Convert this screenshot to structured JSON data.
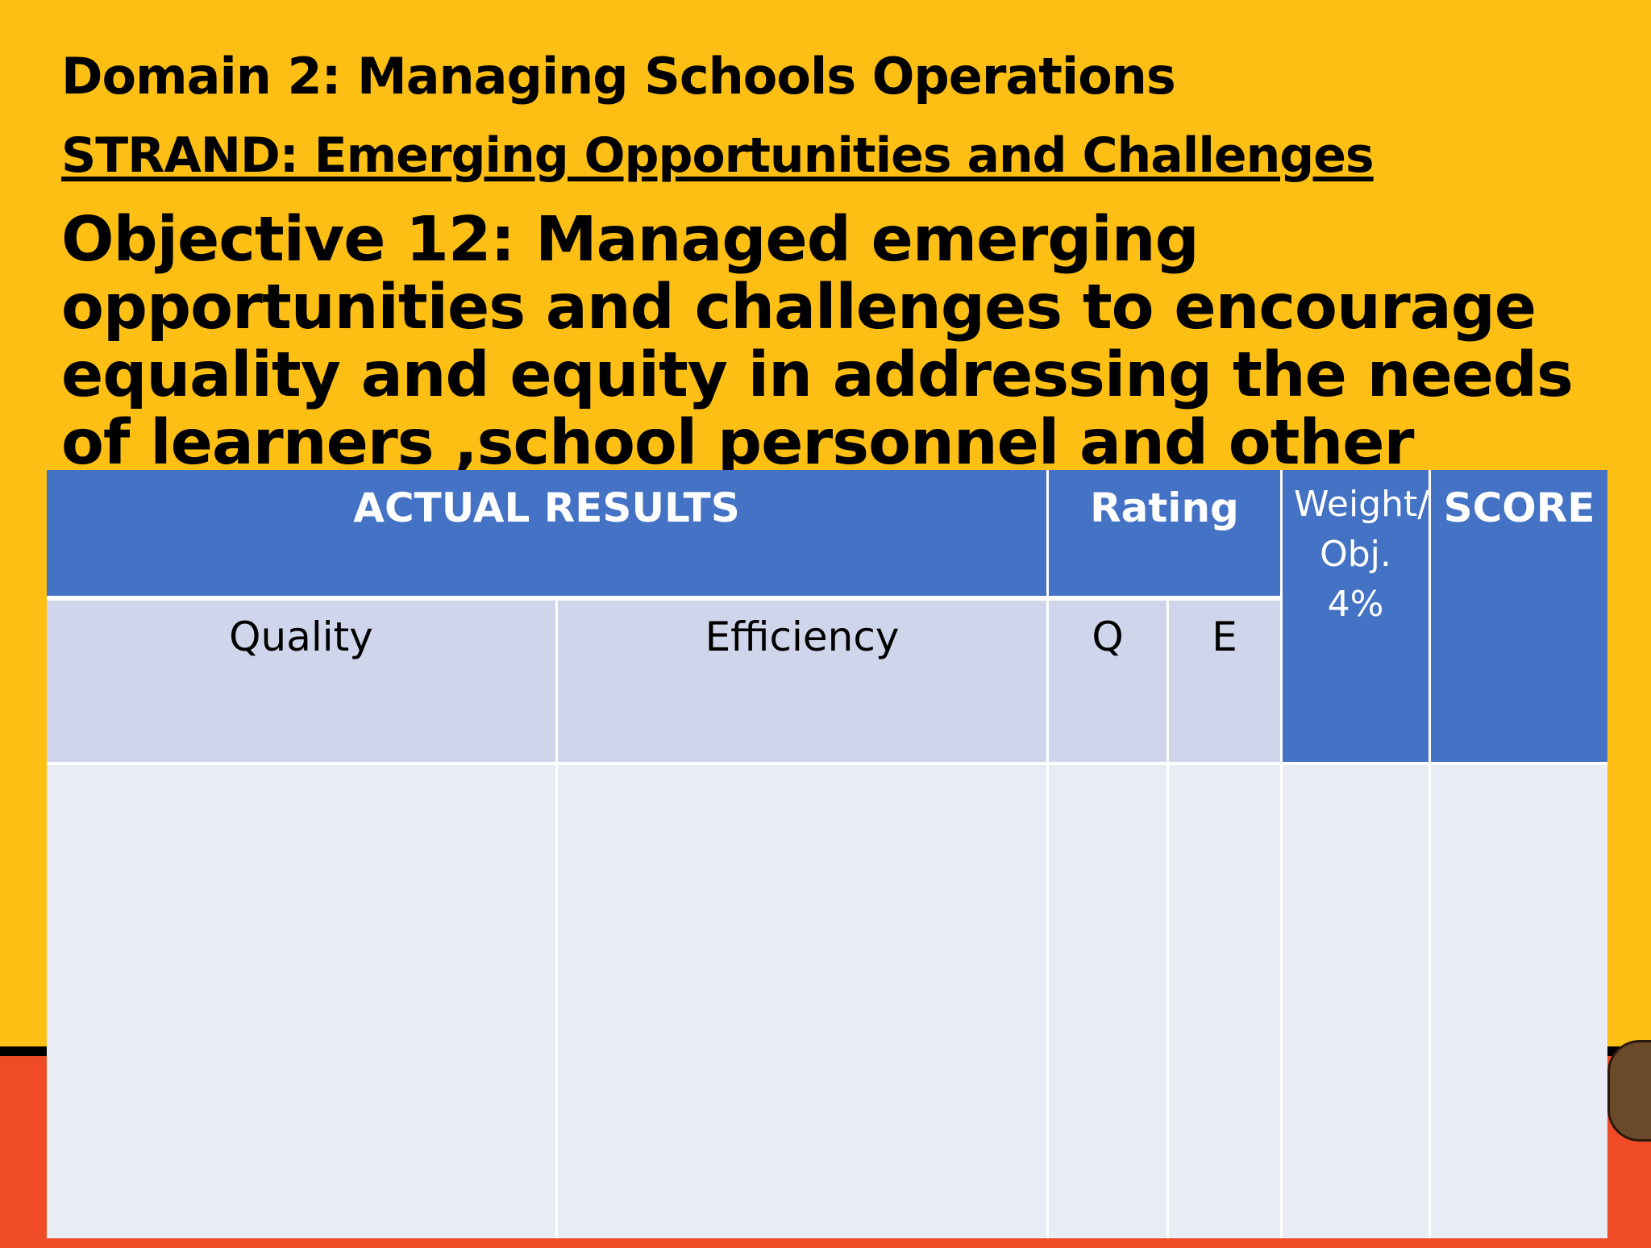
{
  "slide": {
    "domain_title": "Domain 2: Managing Schools Operations",
    "strand_title": "STRAND: Emerging Opportunities and Challenges",
    "objective": "Objective 12: Managed emerging opportunities and challenges to encourage equality and equity in addressing the needs of learners ,school personnel and other stakeholders."
  },
  "table": {
    "header": {
      "actual_results": "ACTUAL RESULTS",
      "rating": "Rating",
      "weight": "Weight/ Obj. 4%",
      "score": "SCORE"
    },
    "subheader": {
      "quality": "Quality",
      "efficiency": "Efficiency",
      "q": "Q",
      "e": "E"
    }
  },
  "colors": {
    "background": "#FDBF14",
    "band": "#EF4B27",
    "header": "#4472C4",
    "subheader": "#CFD5EA",
    "body": "#E9EBF5"
  }
}
